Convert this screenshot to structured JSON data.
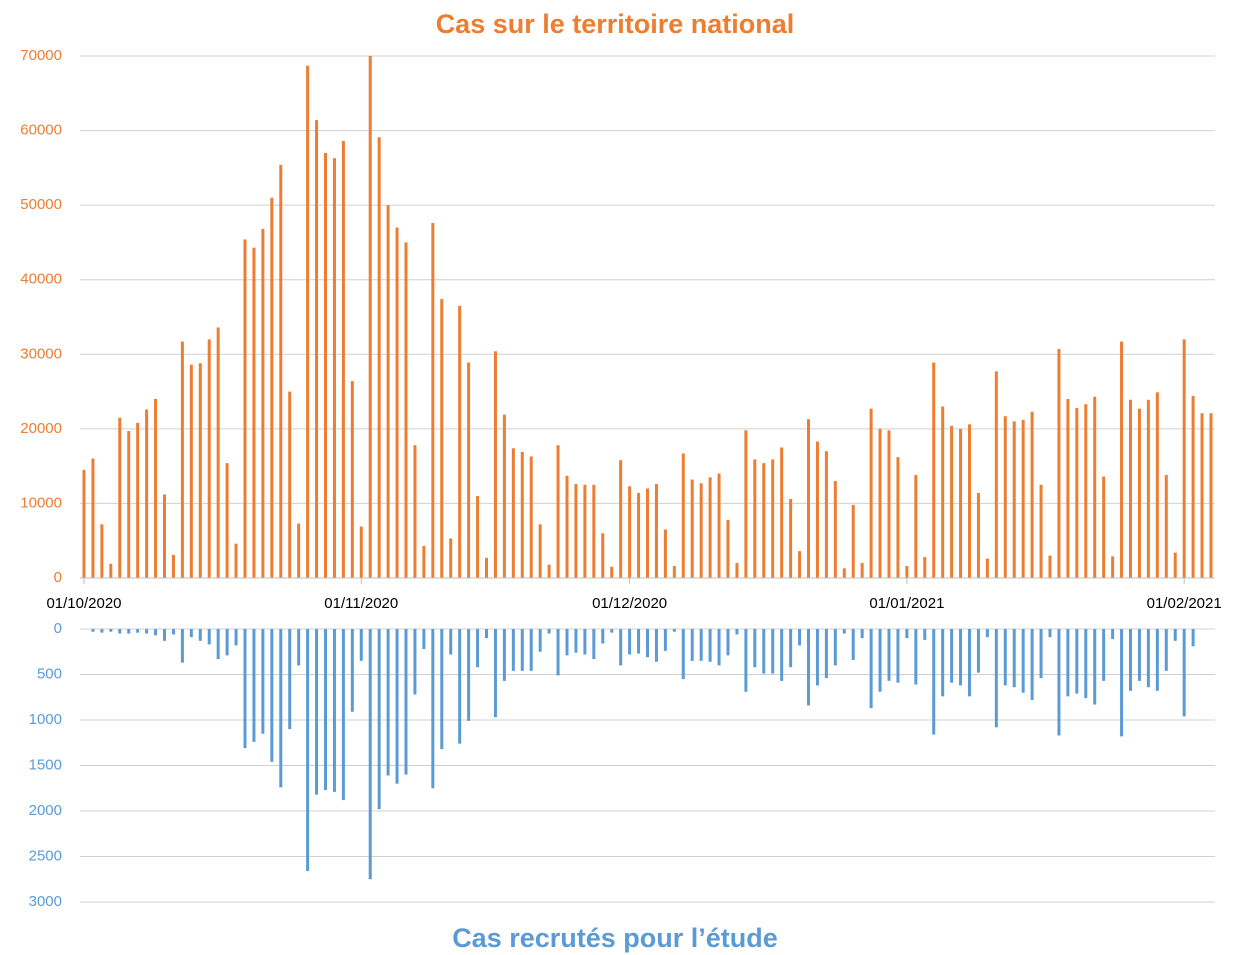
{
  "chart_data": [
    {
      "type": "bar",
      "title": "Cas sur le territoire national",
      "color": "#ed7d31",
      "categories": [
        "01/10/2020",
        null,
        null,
        null,
        null,
        null,
        null,
        null,
        null,
        null,
        null,
        null,
        null,
        null,
        null,
        null,
        null,
        null,
        null,
        null,
        null,
        null,
        null,
        null,
        null,
        null,
        null,
        null,
        null,
        null,
        null,
        "01/11/2020",
        null,
        null,
        null,
        null,
        null,
        null,
        null,
        null,
        null,
        null,
        null,
        null,
        null,
        null,
        null,
        null,
        null,
        null,
        null,
        null,
        null,
        null,
        null,
        null,
        null,
        null,
        null,
        null,
        null,
        "01/12/2020",
        null,
        null,
        null,
        null,
        null,
        null,
        null,
        null,
        null,
        null,
        null,
        null,
        null,
        null,
        null,
        null,
        null,
        null,
        null,
        null,
        null,
        null,
        null,
        null,
        null,
        null,
        null,
        null,
        null,
        null,
        "01/01/2021",
        null,
        null,
        null,
        null,
        null,
        null,
        null,
        null,
        null,
        null,
        null,
        null,
        null,
        null,
        null,
        null,
        null,
        null,
        null,
        null,
        null,
        null,
        null,
        null,
        null,
        null,
        null,
        null,
        null,
        null,
        "01/02/2021",
        null,
        null,
        null
      ],
      "values": [
        14500,
        16000,
        7200,
        1900,
        21500,
        19700,
        20800,
        22600,
        24000,
        11200,
        3100,
        31700,
        28600,
        28800,
        32000,
        33600,
        15400,
        4600,
        45400,
        44300,
        46800,
        51000,
        55400,
        25000,
        7300,
        68700,
        61400,
        57000,
        56300,
        58600,
        26400,
        6900,
        70000,
        59100,
        50000,
        47000,
        45000,
        17800,
        4300,
        47600,
        37400,
        5300,
        36500,
        28900,
        11000,
        2700,
        30400,
        21900,
        17400,
        16900,
        16300,
        7200,
        1800,
        17800,
        13700,
        12600,
        12500,
        12500,
        6000,
        1500,
        15800,
        12300,
        11400,
        12000,
        12600,
        6500,
        1600,
        16700,
        13200,
        12700,
        13500,
        14000,
        7800,
        2000,
        19800,
        15900,
        15400,
        15900,
        17500,
        10600,
        3600,
        21300,
        18300,
        17000,
        13000,
        1300,
        9800,
        2000,
        22700,
        20000,
        19800,
        16200,
        1600,
        13800,
        2800,
        28900,
        23000,
        20400,
        20000,
        20600,
        11400,
        2600,
        27700,
        21700,
        21000,
        21200,
        22300,
        12500,
        3000,
        30700,
        24000,
        22800,
        23300,
        24300,
        13600,
        2900,
        31700,
        23900,
        22700,
        23900,
        24900,
        13800,
        3400,
        32000,
        24400,
        22100,
        22100
      ],
      "ylim": [
        0,
        70000
      ],
      "yticks": [
        0,
        10000,
        20000,
        30000,
        40000,
        50000,
        60000,
        70000
      ],
      "grid": true
    },
    {
      "type": "bar",
      "title": "Cas recrutés pour l’étude",
      "color": "#5b9bd5",
      "inverted": true,
      "values": [
        0,
        30,
        40,
        30,
        50,
        50,
        40,
        50,
        70,
        130,
        60,
        370,
        90,
        130,
        170,
        330,
        290,
        180,
        1310,
        1240,
        1150,
        1460,
        1740,
        1100,
        400,
        2660,
        1820,
        1770,
        1790,
        1880,
        910,
        350,
        2750,
        1980,
        1610,
        1700,
        1600,
        720,
        220,
        1750,
        1320,
        280,
        1260,
        1010,
        420,
        100,
        970,
        570,
        460,
        460,
        460,
        250,
        50,
        510,
        290,
        260,
        280,
        330,
        160,
        40,
        400,
        280,
        270,
        310,
        360,
        240,
        30,
        550,
        350,
        350,
        360,
        400,
        290,
        60,
        690,
        420,
        490,
        490,
        570,
        420,
        180,
        840,
        620,
        540,
        400,
        50,
        340,
        100,
        870,
        690,
        570,
        590,
        100,
        610,
        120,
        1160,
        740,
        590,
        620,
        740,
        480,
        90,
        1080,
        620,
        640,
        700,
        780,
        540,
        90,
        1170,
        740,
        710,
        760,
        830,
        570,
        110,
        1180,
        680,
        570,
        640,
        680,
        460,
        130,
        960,
        190,
        0,
        0
      ],
      "ylim": [
        0,
        3000
      ],
      "yticks": [
        0,
        500,
        1000,
        1500,
        2000,
        2500,
        3000
      ],
      "grid": true
    }
  ]
}
